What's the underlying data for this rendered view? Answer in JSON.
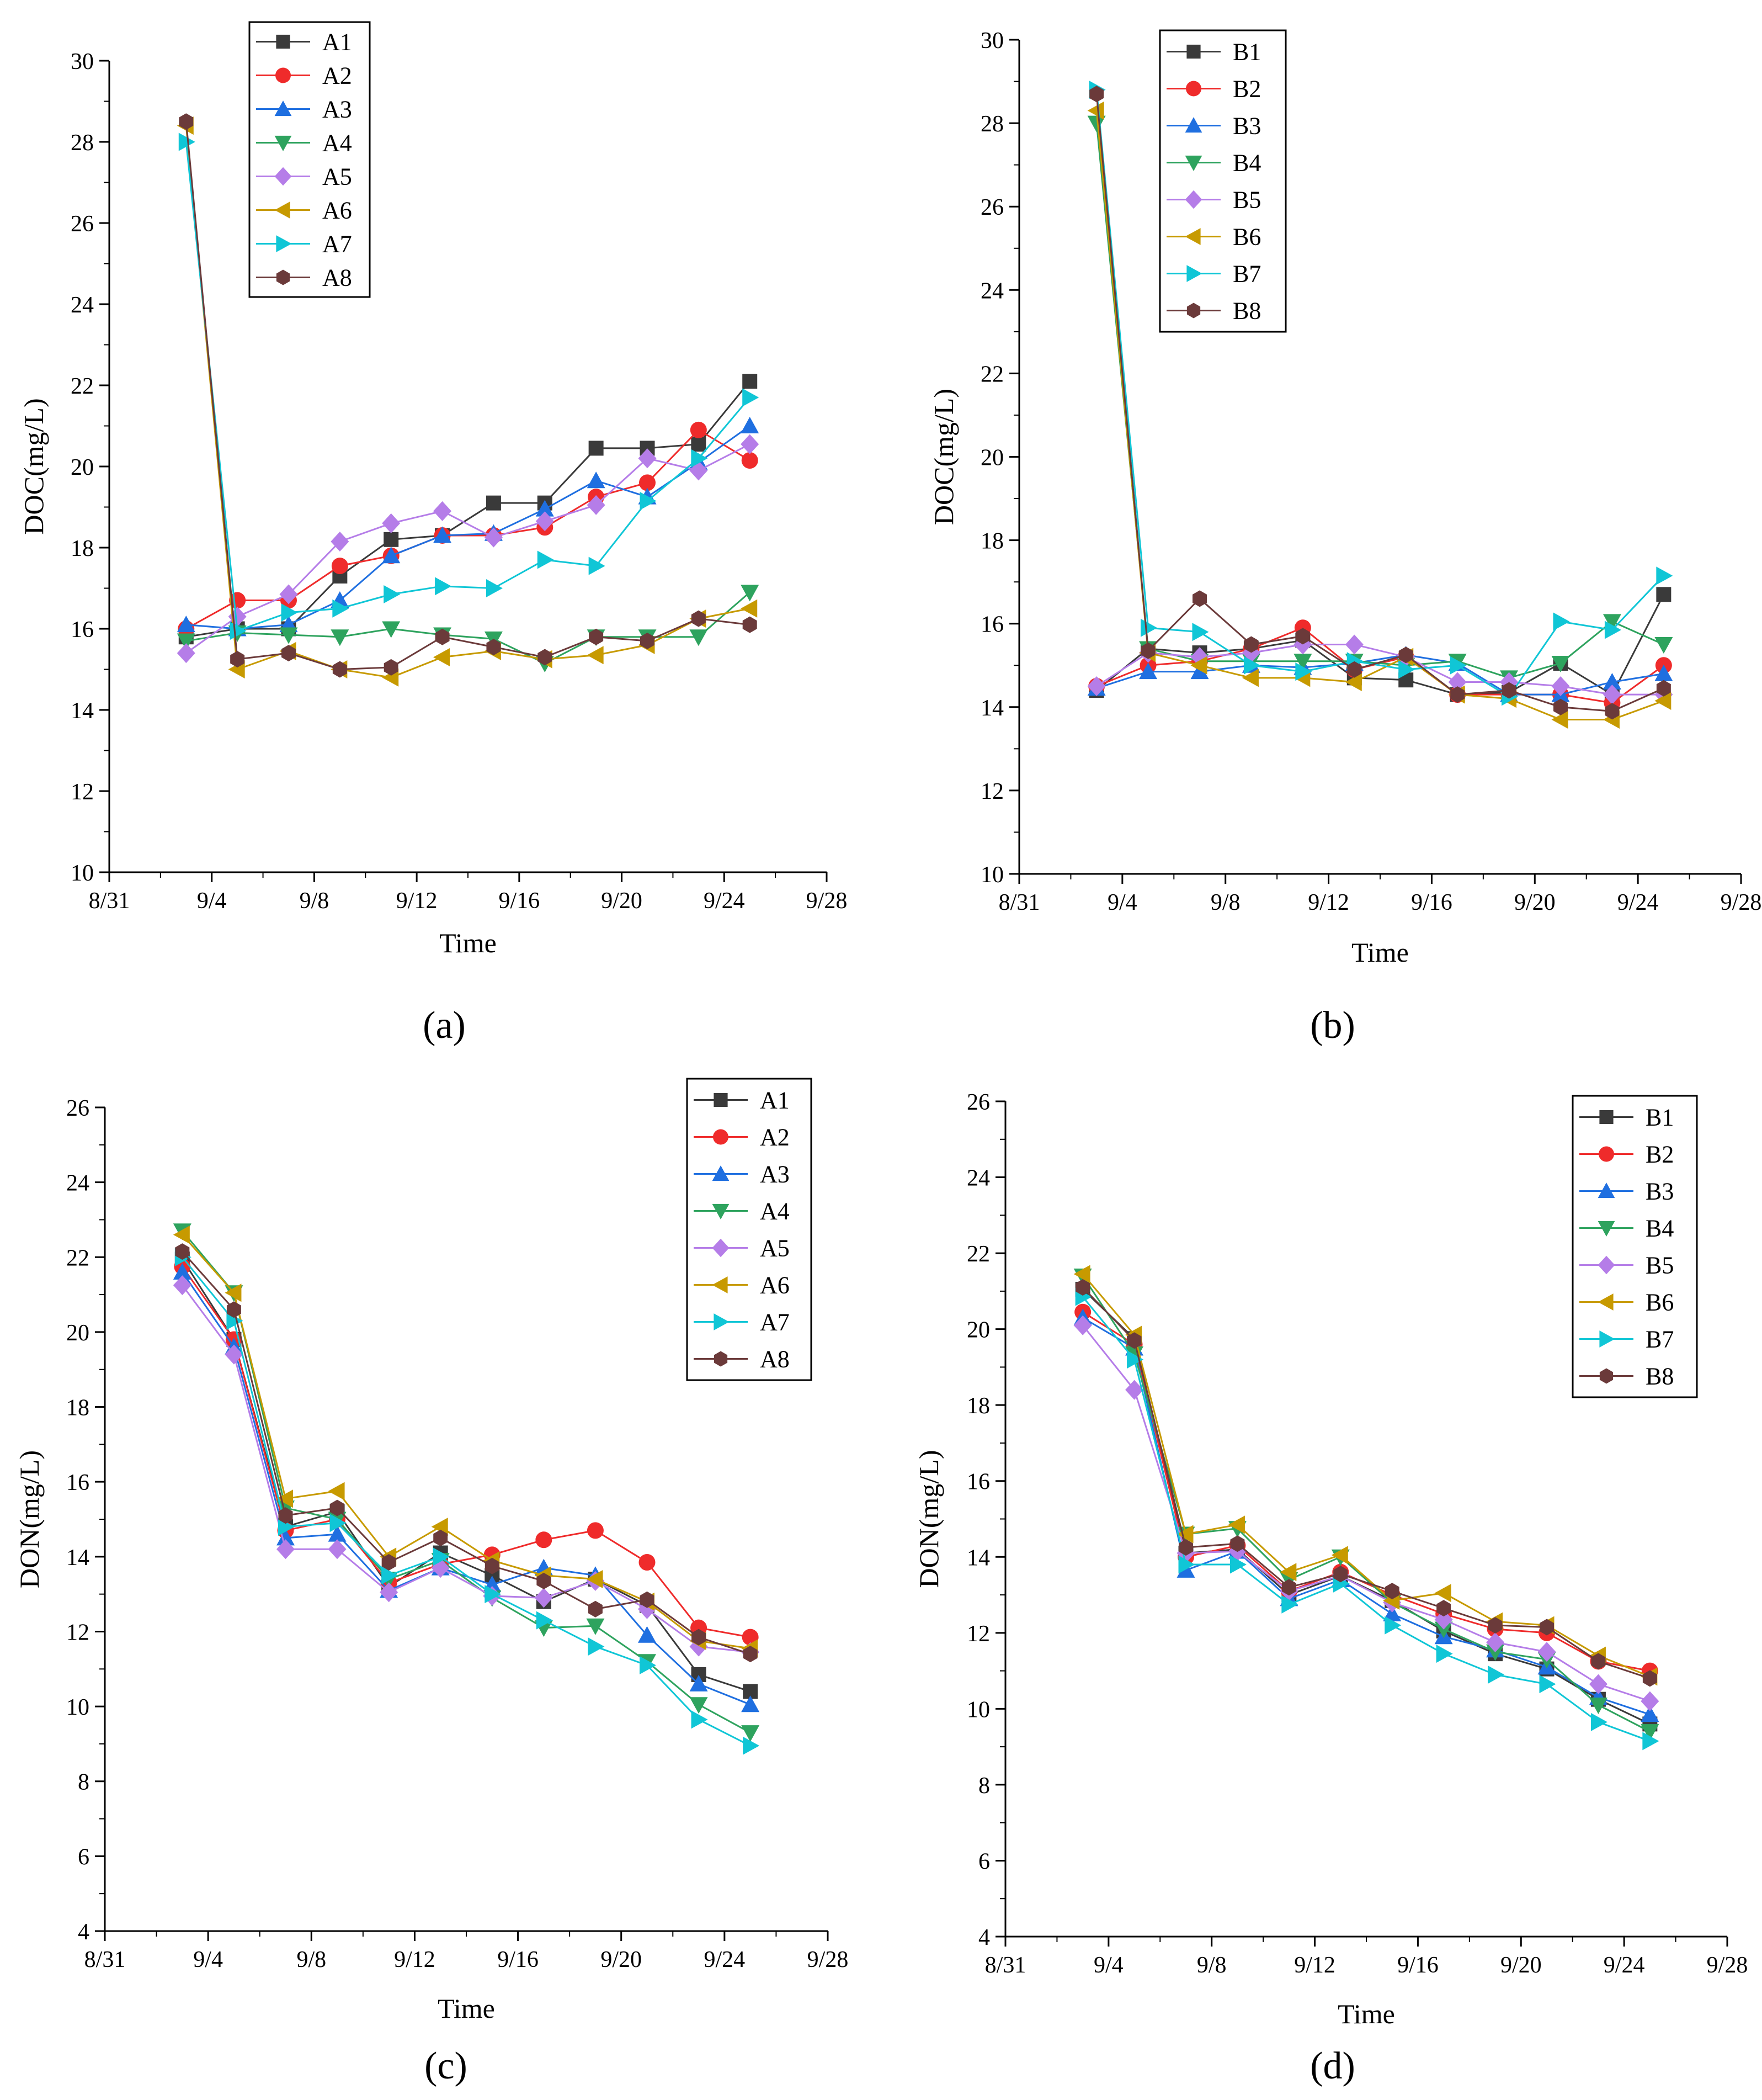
{
  "figure": {
    "panel_labels": [
      "(a)",
      "(b)",
      "(c)",
      "(d)"
    ]
  },
  "series_style": {
    "colors": [
      "#3a3a3a",
      "#ef2b2b",
      "#1f6fe0",
      "#2ea35e",
      "#b57de8",
      "#c79a00",
      "#10c6d6",
      "#6b3a3a"
    ],
    "markers": [
      "square",
      "circle",
      "triangle-up",
      "triangle-down",
      "diamond",
      "triangle-left",
      "triangle-right",
      "hexagon"
    ]
  },
  "chart_data": [
    {
      "type": "line",
      "panel": "(a)",
      "xlabel": "Time",
      "ylabel": "DOC(mg/L)",
      "x_ticks": [
        "8/31",
        "9/4",
        "9/8",
        "9/12",
        "9/16",
        "9/20",
        "9/24",
        "9/28"
      ],
      "xlim": [
        0,
        28
      ],
      "ylim": [
        10,
        30
      ],
      "y_ticks": [
        "10",
        "12",
        "14",
        "16",
        "18",
        "20",
        "22",
        "24",
        "26",
        "28",
        "30"
      ],
      "legend_position": "top-left",
      "x": [
        3,
        5,
        7,
        9,
        11,
        13,
        15,
        17,
        19,
        21,
        23,
        25
      ],
      "series": [
        {
          "name": "A1",
          "values": [
            15.8,
            16.0,
            16.0,
            17.3,
            18.2,
            18.3,
            19.1,
            19.1,
            20.45,
            20.45,
            20.55,
            22.1
          ]
        },
        {
          "name": "A2",
          "values": [
            16.0,
            16.7,
            16.7,
            17.55,
            17.8,
            18.3,
            18.3,
            18.5,
            19.25,
            19.6,
            20.9,
            20.15
          ]
        },
        {
          "name": "A3",
          "values": [
            16.1,
            16.0,
            16.1,
            16.7,
            17.8,
            18.3,
            18.35,
            18.95,
            19.65,
            19.25,
            20.1,
            21.0
          ]
        },
        {
          "name": "A4",
          "values": [
            15.7,
            15.9,
            15.85,
            15.8,
            16.0,
            15.85,
            15.75,
            15.15,
            15.8,
            15.8,
            15.8,
            16.9
          ]
        },
        {
          "name": "A5",
          "values": [
            15.4,
            16.3,
            16.85,
            18.15,
            18.6,
            18.9,
            18.25,
            18.65,
            19.05,
            20.2,
            19.9,
            20.55
          ]
        },
        {
          "name": "A6",
          "values": [
            28.4,
            15.0,
            15.45,
            15.0,
            14.8,
            15.3,
            15.45,
            15.25,
            15.35,
            15.6,
            16.25,
            16.5
          ]
        },
        {
          "name": "A7",
          "values": [
            28.0,
            15.95,
            16.4,
            16.5,
            16.85,
            17.05,
            17.0,
            17.7,
            17.55,
            19.15,
            20.2,
            21.7
          ]
        },
        {
          "name": "A8",
          "values": [
            28.5,
            15.25,
            15.4,
            15.0,
            15.05,
            15.8,
            15.55,
            15.3,
            15.8,
            15.7,
            16.25,
            16.1
          ]
        }
      ]
    },
    {
      "type": "line",
      "panel": "(b)",
      "xlabel": "Time",
      "ylabel": "DOC(mg/L)",
      "x_ticks": [
        "8/31",
        "9/4",
        "9/8",
        "9/12",
        "9/16",
        "9/20",
        "9/24",
        "9/28"
      ],
      "xlim": [
        0,
        28
      ],
      "ylim": [
        10,
        30
      ],
      "y_ticks": [
        "10",
        "12",
        "14",
        "16",
        "18",
        "20",
        "22",
        "24",
        "26",
        "28",
        "30"
      ],
      "legend_position": "top-left",
      "x": [
        3,
        5,
        7,
        9,
        11,
        13,
        15,
        17,
        19,
        21,
        23,
        25
      ],
      "series": [
        {
          "name": "B1",
          "values": [
            14.4,
            15.4,
            15.3,
            15.4,
            15.6,
            14.7,
            14.65,
            14.3,
            14.35,
            15.05,
            14.3,
            16.7
          ]
        },
        {
          "name": "B2",
          "values": [
            14.5,
            15.0,
            15.1,
            15.4,
            15.9,
            14.9,
            15.2,
            14.3,
            14.3,
            14.3,
            14.1,
            15.0
          ]
        },
        {
          "name": "B3",
          "values": [
            14.45,
            14.85,
            14.85,
            15.0,
            14.95,
            15.05,
            15.25,
            15.05,
            14.3,
            14.3,
            14.6,
            14.8
          ]
        },
        {
          "name": "B4",
          "values": [
            28.0,
            15.4,
            15.1,
            15.1,
            15.1,
            15.1,
            15.0,
            15.1,
            14.7,
            15.05,
            16.05,
            15.5
          ]
        },
        {
          "name": "B5",
          "values": [
            14.5,
            15.3,
            15.2,
            15.3,
            15.5,
            15.5,
            15.2,
            14.6,
            14.6,
            14.5,
            14.3,
            14.3
          ]
        },
        {
          "name": "B6",
          "values": [
            28.3,
            15.3,
            15.0,
            14.7,
            14.7,
            14.6,
            15.2,
            14.3,
            14.2,
            13.7,
            13.7,
            14.15
          ]
        },
        {
          "name": "B7",
          "values": [
            28.8,
            15.9,
            15.8,
            15.0,
            14.85,
            15.1,
            14.9,
            15.0,
            14.25,
            16.05,
            15.85,
            17.15
          ]
        },
        {
          "name": "B8",
          "values": [
            28.7,
            15.35,
            16.6,
            15.5,
            15.7,
            14.9,
            15.25,
            14.3,
            14.4,
            14.0,
            13.9,
            14.45
          ]
        }
      ]
    },
    {
      "type": "line",
      "panel": "(c)",
      "xlabel": "Time",
      "ylabel": "DON(mg/L)",
      "x_ticks": [
        "8/31",
        "9/4",
        "9/8",
        "9/12",
        "9/16",
        "9/20",
        "9/24",
        "9/28"
      ],
      "xlim": [
        0,
        28
      ],
      "ylim": [
        4,
        26
      ],
      "y_ticks": [
        "4",
        "6",
        "8",
        "10",
        "12",
        "14",
        "16",
        "18",
        "20",
        "22",
        "24",
        "26"
      ],
      "legend_position": "top-right",
      "x": [
        3,
        5,
        7,
        9,
        11,
        13,
        15,
        17,
        19,
        21,
        23,
        25
      ],
      "series": [
        {
          "name": "A1",
          "values": [
            21.95,
            19.8,
            14.8,
            15.2,
            13.2,
            14.1,
            13.5,
            12.8,
            13.4,
            12.7,
            10.85,
            10.4
          ]
        },
        {
          "name": "A2",
          "values": [
            21.75,
            19.8,
            14.7,
            15.0,
            13.3,
            13.8,
            14.05,
            14.45,
            14.7,
            13.85,
            12.1,
            11.85
          ]
        },
        {
          "name": "A3",
          "values": [
            21.6,
            19.6,
            14.5,
            14.6,
            13.1,
            13.7,
            13.25,
            13.7,
            13.5,
            11.9,
            10.6,
            10.05
          ]
        },
        {
          "name": "A4",
          "values": [
            22.7,
            21.05,
            15.3,
            15.0,
            13.4,
            13.9,
            12.9,
            12.1,
            12.15,
            11.2,
            10.05,
            9.3
          ]
        },
        {
          "name": "A5",
          "values": [
            21.25,
            19.4,
            14.2,
            14.2,
            13.05,
            13.7,
            12.95,
            12.9,
            13.35,
            12.6,
            11.6,
            11.45
          ]
        },
        {
          "name": "A6",
          "values": [
            22.6,
            21.05,
            15.55,
            15.75,
            14.0,
            14.8,
            13.9,
            13.5,
            13.4,
            12.8,
            11.75,
            11.55
          ]
        },
        {
          "name": "A7",
          "values": [
            22.0,
            20.3,
            14.8,
            14.9,
            13.5,
            14.0,
            13.0,
            12.3,
            11.6,
            11.1,
            9.65,
            8.95
          ]
        },
        {
          "name": "A8",
          "values": [
            22.15,
            20.6,
            15.1,
            15.3,
            13.85,
            14.5,
            13.75,
            13.35,
            12.6,
            12.85,
            11.85,
            11.4
          ]
        }
      ]
    },
    {
      "type": "line",
      "panel": "(d)",
      "xlabel": "Time",
      "ylabel": "DON(mg/L)",
      "x_ticks": [
        "8/31",
        "9/4",
        "9/8",
        "9/12",
        "9/16",
        "9/20",
        "9/24",
        "9/28"
      ],
      "xlim": [
        0,
        28
      ],
      "ylim": [
        4,
        26
      ],
      "y_ticks": [
        "4",
        "6",
        "8",
        "10",
        "12",
        "14",
        "16",
        "18",
        "20",
        "22",
        "24",
        "26"
      ],
      "legend_position": "top-right",
      "x": [
        3,
        5,
        7,
        9,
        11,
        13,
        15,
        17,
        19,
        21,
        23,
        25
      ],
      "series": [
        {
          "name": "B1",
          "values": [
            21.05,
            19.75,
            14.1,
            14.2,
            13.0,
            13.5,
            12.85,
            12.05,
            11.45,
            11.05,
            10.25,
            9.6
          ]
        },
        {
          "name": "B2",
          "values": [
            20.45,
            19.6,
            14.0,
            14.3,
            13.1,
            13.6,
            13.0,
            12.5,
            12.1,
            12.0,
            11.25,
            11.0
          ]
        },
        {
          "name": "B3",
          "values": [
            20.3,
            19.5,
            13.65,
            14.15,
            12.9,
            13.4,
            12.5,
            11.9,
            11.55,
            11.1,
            10.3,
            9.85
          ]
        },
        {
          "name": "B4",
          "values": [
            21.4,
            19.35,
            14.6,
            14.75,
            13.4,
            14.0,
            12.8,
            12.1,
            11.5,
            11.3,
            10.1,
            9.4
          ]
        },
        {
          "name": "B5",
          "values": [
            20.1,
            18.4,
            14.1,
            14.15,
            13.1,
            13.5,
            12.8,
            12.35,
            11.75,
            11.5,
            10.65,
            10.2
          ]
        },
        {
          "name": "B6",
          "values": [
            21.45,
            19.85,
            14.6,
            14.85,
            13.6,
            14.05,
            12.85,
            13.05,
            12.3,
            12.2,
            11.4,
            10.85
          ]
        },
        {
          "name": "B7",
          "values": [
            20.85,
            19.2,
            13.8,
            13.8,
            12.75,
            13.3,
            12.2,
            11.45,
            10.9,
            10.65,
            9.65,
            9.15
          ]
        },
        {
          "name": "B8",
          "values": [
            21.1,
            19.7,
            14.25,
            14.35,
            13.2,
            13.55,
            13.1,
            12.65,
            12.2,
            12.15,
            11.25,
            10.8
          ]
        }
      ]
    }
  ]
}
